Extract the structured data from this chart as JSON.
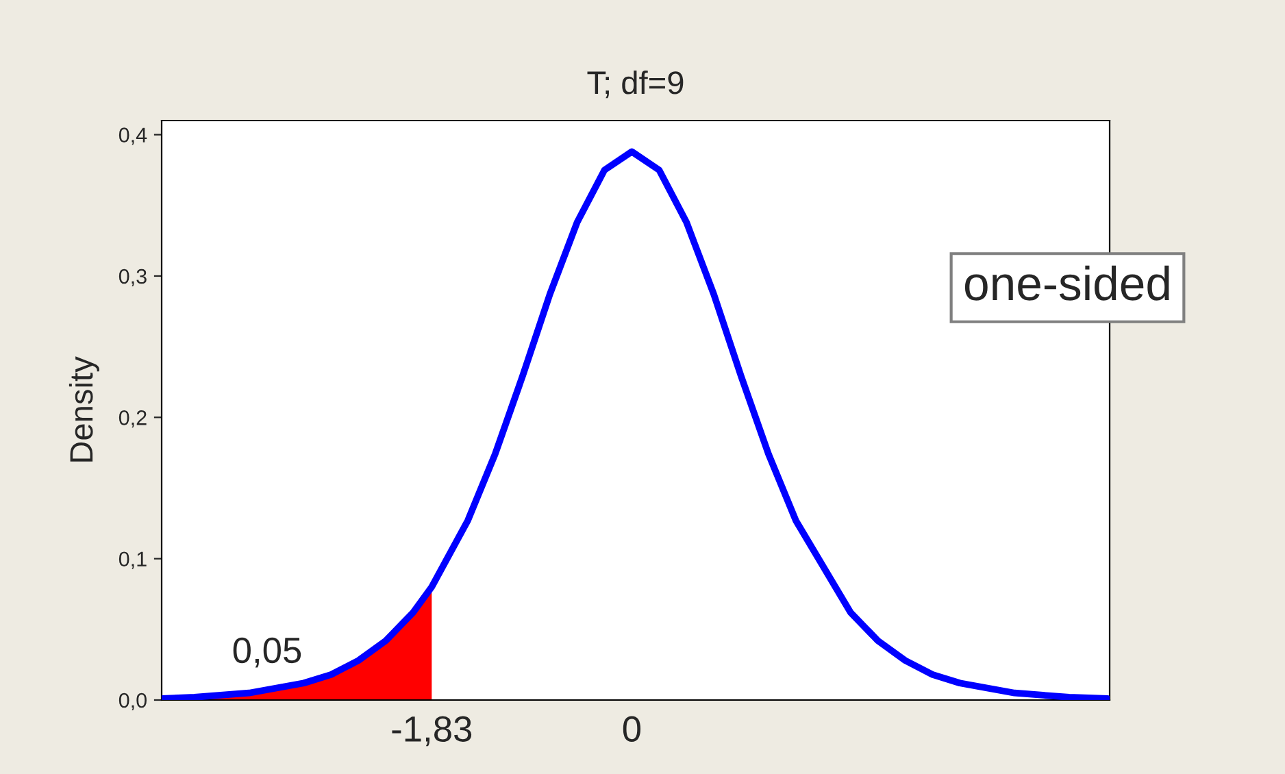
{
  "chart_data": {
    "type": "line",
    "title": "T; df=9",
    "ylabel": "Density",
    "series": [
      {
        "type": "area",
        "color": "#ff0000",
        "x": [
          -4.3,
          -4.0,
          -3.5,
          -3.0,
          -2.75,
          -2.5,
          -2.25,
          -2.0,
          -1.83
        ],
        "values": [
          0.001,
          0.002,
          0.005,
          0.012,
          0.018,
          0.028,
          0.042,
          0.062,
          0.08
        ]
      },
      {
        "color": "#0000ff",
        "x": [
          -4.3,
          -4.0,
          -3.5,
          -3.0,
          -2.75,
          -2.5,
          -2.25,
          -2.0,
          -1.83,
          -1.5,
          -1.25,
          -1.0,
          -0.75,
          -0.5,
          -0.25,
          0.0,
          0.25,
          0.5,
          0.75,
          1.0,
          1.25,
          1.5,
          2.0,
          2.25,
          2.5,
          2.75,
          3.0,
          3.5,
          4.0,
          4.35
        ],
        "values": [
          0.001,
          0.002,
          0.005,
          0.012,
          0.018,
          0.028,
          0.042,
          0.062,
          0.08,
          0.127,
          0.174,
          0.229,
          0.287,
          0.338,
          0.375,
          0.388,
          0.375,
          0.338,
          0.287,
          0.229,
          0.174,
          0.127,
          0.062,
          0.042,
          0.028,
          0.018,
          0.012,
          0.005,
          0.002,
          0.001
        ]
      }
    ],
    "xlim": [
      -4.3,
      4.37
    ],
    "xticks": [
      {
        "value": -1.83,
        "label": "-1,83"
      },
      0
    ],
    "ylim": [
      0,
      0.41
    ],
    "yticks": [
      {
        "value": 0,
        "label": "0,0"
      },
      {
        "value": 0.1,
        "label": "0,1"
      },
      {
        "value": 0.2,
        "label": "0,2"
      },
      {
        "value": 0.3,
        "label": "0,3"
      },
      {
        "value": 0.4,
        "label": "0,4"
      }
    ],
    "annotations": [
      "0,05",
      "one-sided"
    ],
    "grid": false,
    "legend": false,
    "marker": "none",
    "line_style": "solid"
  }
}
